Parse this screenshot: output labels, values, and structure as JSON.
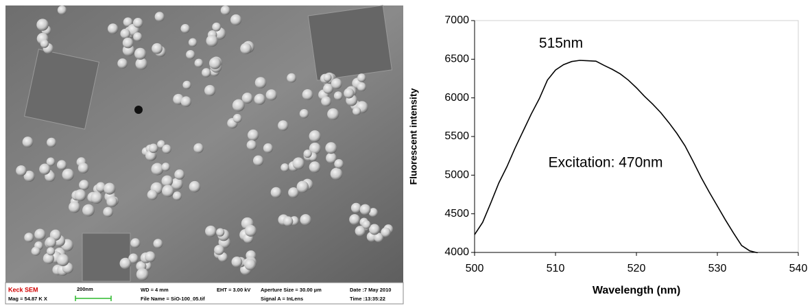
{
  "sem_image": {
    "lab": "Keck SEM",
    "mag": "Mag = 54.87 K X",
    "scale": "200nm",
    "wd": "WD =   4 mm",
    "file_name": "File Name = SiO-100_05.tif",
    "eht": "EHT =  3.00 kV",
    "aperture": "Aperture Size = 30.00 µm",
    "signal": "Signal A = InLens",
    "date": "Date :7 May 2010",
    "time": "Time :13:35:22"
  },
  "chart_data": {
    "type": "line",
    "x_label": "Wavelength (nm)",
    "y_label": "Fluorescent intensity",
    "annotations": [
      "515nm",
      "Excitation: 470nm"
    ],
    "x": [
      500,
      501,
      502,
      503,
      504,
      505,
      506,
      507,
      508,
      509,
      510,
      511,
      512,
      513,
      514,
      515,
      516,
      517,
      518,
      519,
      520,
      521,
      522,
      523,
      524,
      525,
      526,
      527,
      528,
      529,
      530,
      531,
      532,
      533,
      534,
      535
    ],
    "values": [
      4230,
      4390,
      4640,
      4900,
      5110,
      5350,
      5570,
      5790,
      5990,
      6230,
      6360,
      6430,
      6470,
      6485,
      6480,
      6475,
      6420,
      6370,
      6310,
      6230,
      6130,
      6020,
      5920,
      5810,
      5680,
      5540,
      5380,
      5180,
      4970,
      4780,
      4600,
      4420,
      4250,
      4090,
      4020,
      3995
    ],
    "color": "#000000",
    "xlim": [
      500,
      540
    ],
    "ylim": [
      4000,
      7000
    ],
    "xticks": [
      500,
      510,
      520,
      530,
      540
    ],
    "yticks": [
      4000,
      4500,
      5000,
      5500,
      6000,
      6500,
      7000
    ]
  }
}
